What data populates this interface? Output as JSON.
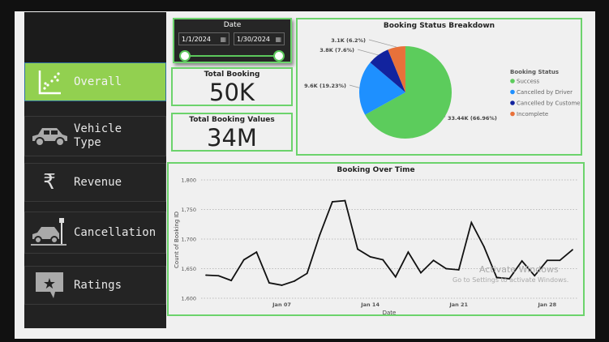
{
  "sidebar": {
    "items": [
      {
        "label": "Overall",
        "icon": "scatter-chart-icon"
      },
      {
        "label": "Vehicle Type",
        "icon": "car-icon"
      },
      {
        "label": "Revenue",
        "icon": "rupee-icon"
      },
      {
        "label": "Cancellation",
        "icon": "car-crash-icon"
      },
      {
        "label": "Ratings",
        "icon": "star-speech-icon"
      }
    ]
  },
  "date_filter": {
    "title": "Date",
    "start": "1/1/2024",
    "end": "1/30/2024"
  },
  "kpis": [
    {
      "title": "Total Booking",
      "value": "50K"
    },
    {
      "title": "Total Booking Values",
      "value": "34M"
    }
  ],
  "watermark": {
    "line1": "Activate Windows",
    "line2": "Go to Settings to activate Windows."
  },
  "chart_data": [
    {
      "type": "pie",
      "title": "Booking Status Breakdown",
      "legend_title": "Booking Status",
      "legend_position": "right",
      "slices": [
        {
          "name": "Success",
          "value": 33.44,
          "label": "33.44K (66.96%)",
          "percent": 66.96,
          "color": "#5ccc5c"
        },
        {
          "name": "Cancelled by Driver",
          "value": 9.6,
          "label": "9.6K (19.23%)",
          "percent": 19.23,
          "color": "#1e90ff"
        },
        {
          "name": "Cancelled by Customer",
          "value": 3.8,
          "label": "3.8K (7.6%)",
          "percent": 7.6,
          "color": "#12239e"
        },
        {
          "name": "Incomplete",
          "value": 3.1,
          "label": "3.1K (6.2%)",
          "percent": 6.2,
          "color": "#e8713a"
        }
      ]
    },
    {
      "type": "line",
      "title": "Booking Over Time",
      "xlabel": "Date",
      "ylabel": "Count of Booking ID",
      "ylim": [
        1600,
        1800
      ],
      "yticks": [
        "1,600",
        "1,650",
        "1,700",
        "1,750",
        "1,800"
      ],
      "xticks": [
        {
          "day": 7,
          "label": "Jan 07"
        },
        {
          "day": 14,
          "label": "Jan 14"
        },
        {
          "day": 21,
          "label": "Jan 21"
        },
        {
          "day": 28,
          "label": "Jan 28"
        }
      ],
      "x": [
        1,
        2,
        3,
        4,
        5,
        6,
        7,
        8,
        9,
        10,
        11,
        12,
        13,
        14,
        15,
        16,
        17,
        18,
        19,
        20,
        21,
        22,
        23,
        24,
        25,
        26,
        27,
        28,
        29,
        30
      ],
      "values": [
        1639,
        1638,
        1630,
        1665,
        1678,
        1626,
        1622,
        1629,
        1642,
        1707,
        1763,
        1765,
        1683,
        1670,
        1665,
        1636,
        1678,
        1643,
        1664,
        1650,
        1648,
        1728,
        1687,
        1635,
        1633,
        1663,
        1638,
        1664,
        1664,
        1682
      ]
    }
  ]
}
